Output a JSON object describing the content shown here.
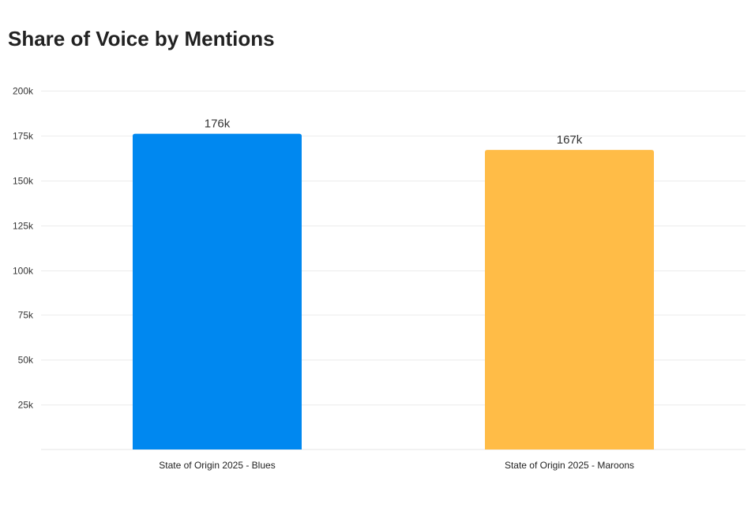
{
  "chart_data": {
    "type": "bar",
    "title": "Share of Voice by Mentions",
    "categories": [
      "State of Origin 2025 - Blues",
      "State of Origin 2025 - Maroons"
    ],
    "values": [
      176000,
      167000
    ],
    "data_labels": [
      "176k",
      "167k"
    ],
    "colors": [
      "#0088f0",
      "#ffbc47"
    ],
    "ylim": [
      0,
      200000
    ],
    "y_ticks": [
      25000,
      50000,
      75000,
      100000,
      125000,
      150000,
      175000,
      200000
    ],
    "y_tick_labels": [
      "25k",
      "50k",
      "75k",
      "100k",
      "125k",
      "150k",
      "175k",
      "200k"
    ],
    "xlabel": "",
    "ylabel": "",
    "grid": true,
    "legend": "none"
  }
}
